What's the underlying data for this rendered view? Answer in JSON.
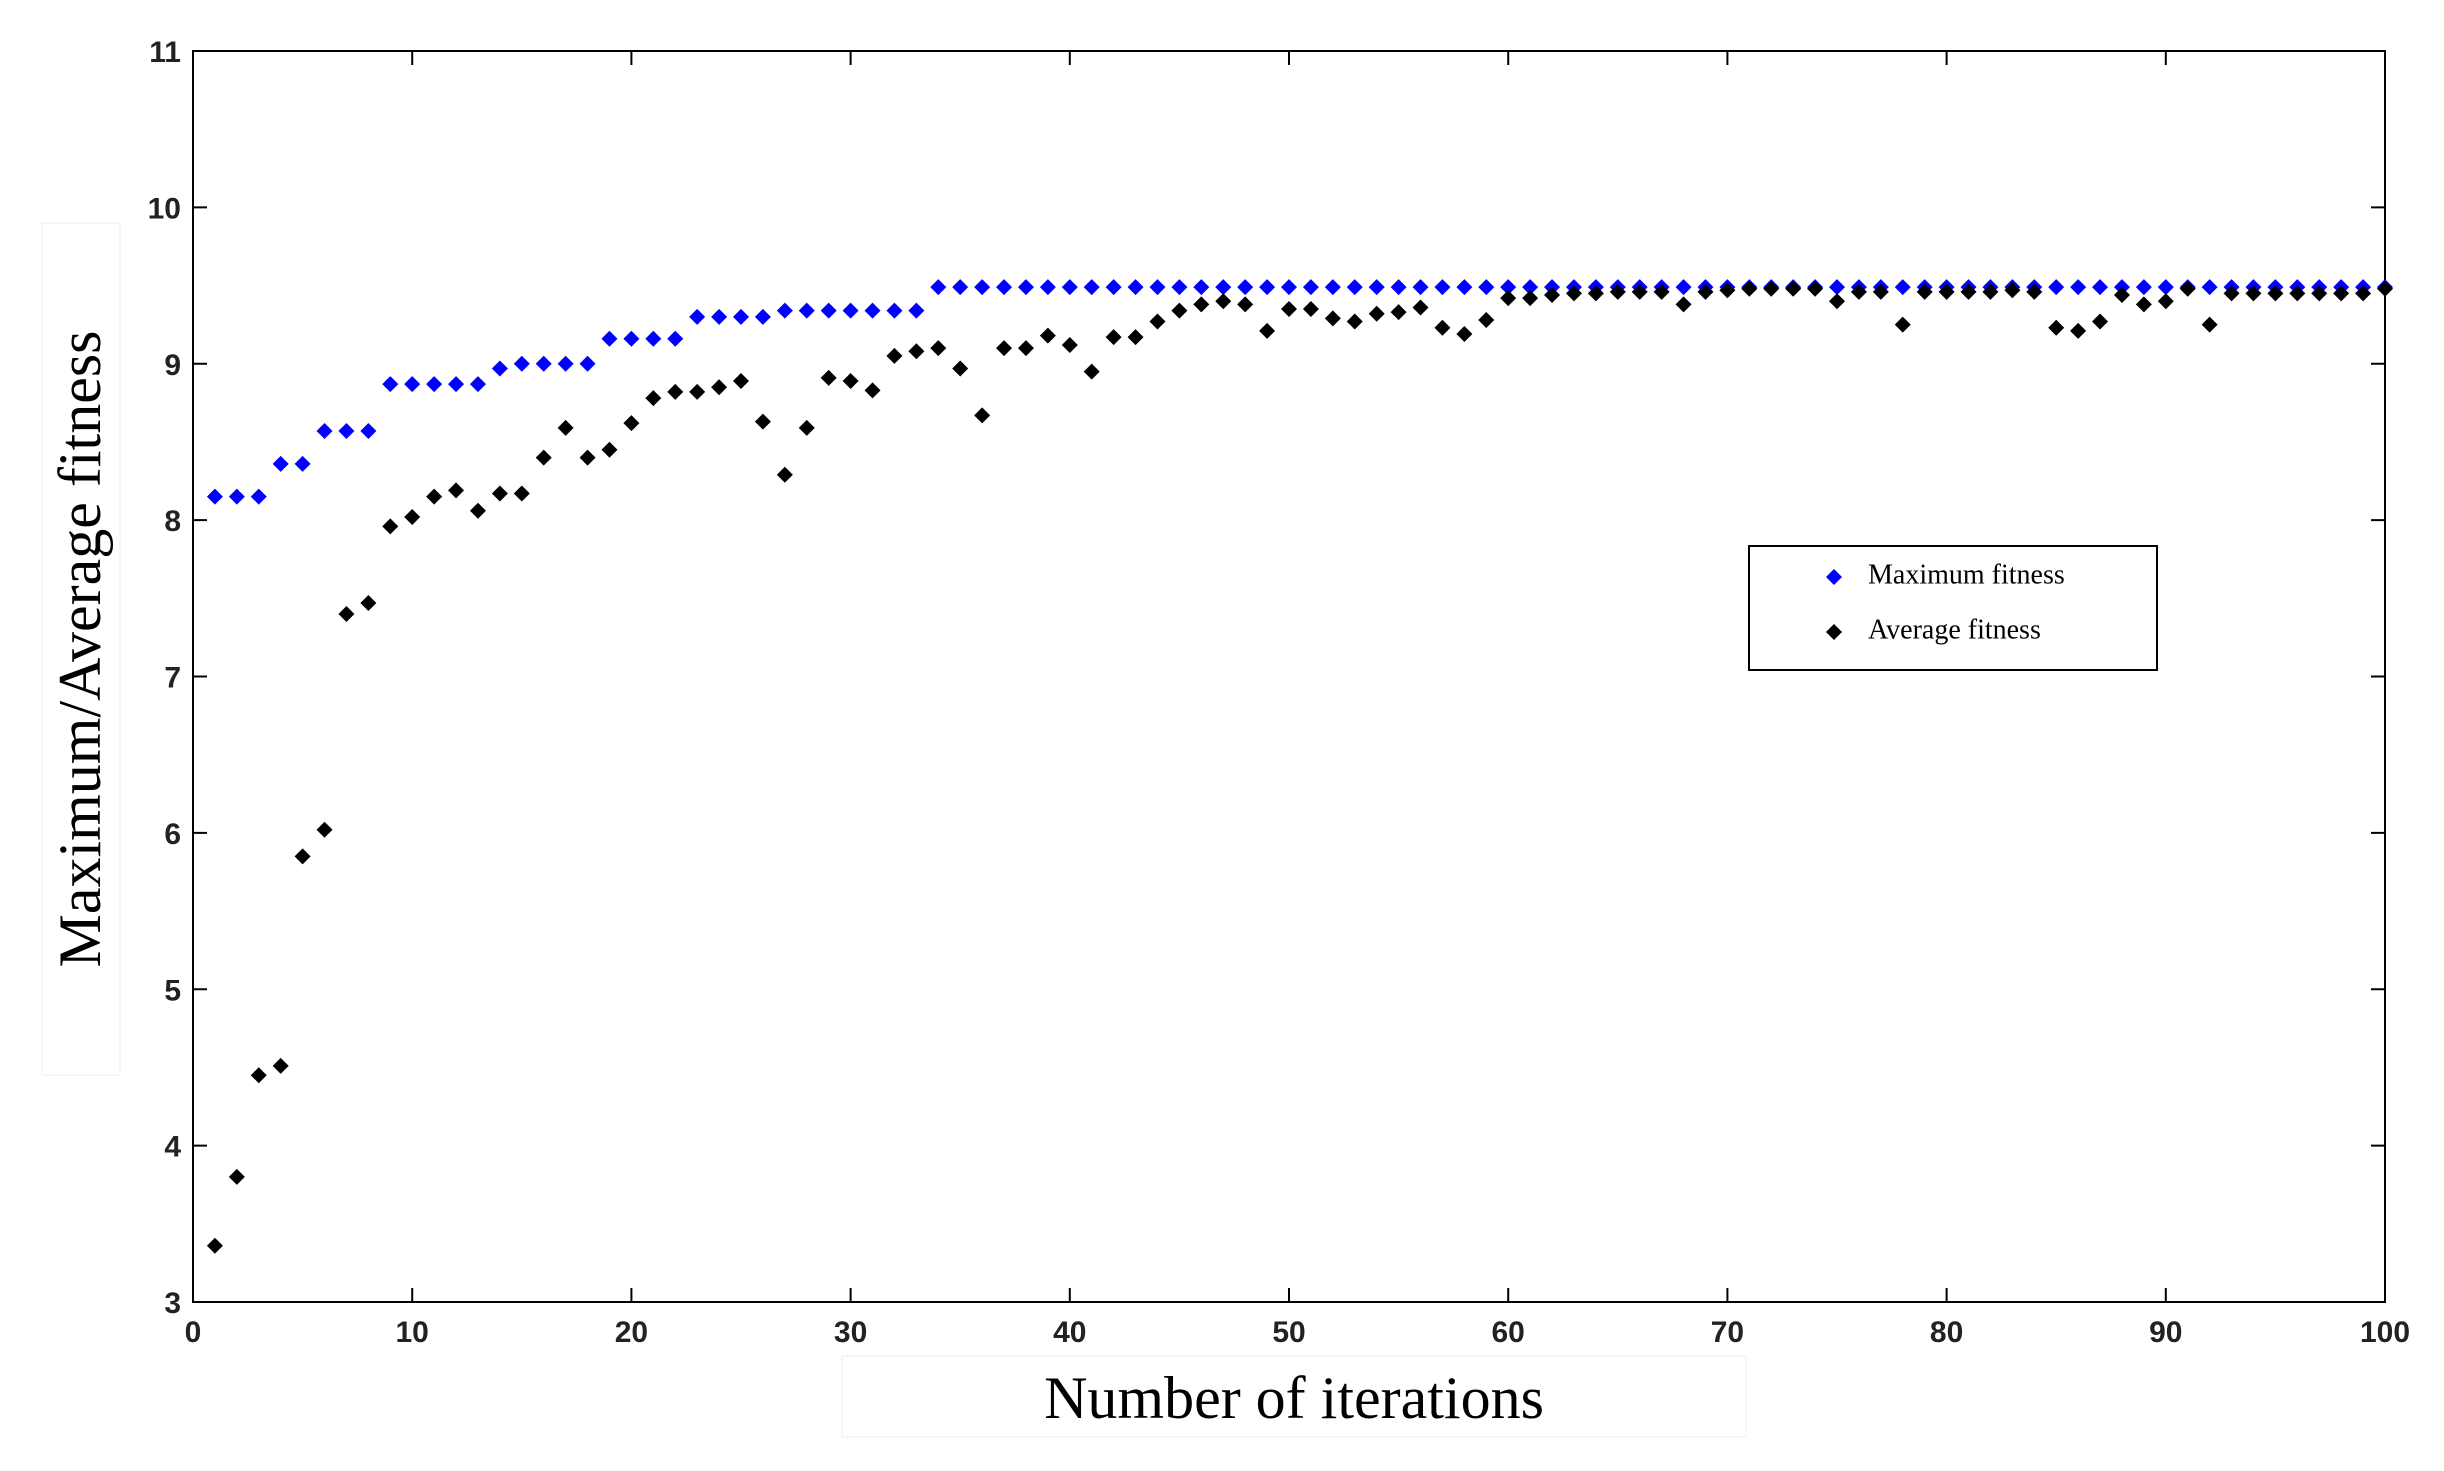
{
  "chart_data": {
    "type": "scatter",
    "x_label": "Number of iterations",
    "y_label": "Maximum/Average fitness",
    "x": [
      1,
      2,
      3,
      4,
      5,
      6,
      7,
      8,
      9,
      10,
      11,
      12,
      13,
      14,
      15,
      16,
      17,
      18,
      19,
      20,
      21,
      22,
      23,
      24,
      25,
      26,
      27,
      28,
      29,
      30,
      31,
      32,
      33,
      34,
      35,
      36,
      37,
      38,
      39,
      40,
      41,
      42,
      43,
      44,
      45,
      46,
      47,
      48,
      49,
      50,
      51,
      52,
      53,
      54,
      55,
      56,
      57,
      58,
      59,
      60,
      61,
      62,
      63,
      64,
      65,
      66,
      67,
      68,
      69,
      70,
      71,
      72,
      73,
      74,
      75,
      76,
      77,
      78,
      79,
      80,
      81,
      82,
      83,
      84,
      85,
      86,
      87,
      88,
      89,
      90,
      91,
      92,
      93,
      94,
      95,
      96,
      97,
      98,
      99,
      100
    ],
    "series": [
      {
        "name": "Maximum fitness",
        "color": "#0000ff",
        "values": [
          8.15,
          8.15,
          8.15,
          8.36,
          8.36,
          8.57,
          8.57,
          8.57,
          8.87,
          8.87,
          8.87,
          8.87,
          8.87,
          8.97,
          9.0,
          9.0,
          9.0,
          9.0,
          9.16,
          9.16,
          9.16,
          9.16,
          9.3,
          9.3,
          9.3,
          9.3,
          9.34,
          9.34,
          9.34,
          9.34,
          9.34,
          9.34,
          9.34,
          9.49,
          9.49,
          9.49,
          9.49,
          9.49,
          9.49,
          9.49,
          9.49,
          9.49,
          9.49,
          9.49,
          9.49,
          9.49,
          9.49,
          9.49,
          9.49,
          9.49,
          9.49,
          9.49,
          9.49,
          9.49,
          9.49,
          9.49,
          9.49,
          9.49,
          9.49,
          9.49,
          9.49,
          9.49,
          9.49,
          9.49,
          9.49,
          9.49,
          9.49,
          9.49,
          9.49,
          9.49,
          9.49,
          9.49,
          9.49,
          9.49,
          9.49,
          9.49,
          9.49,
          9.49,
          9.49,
          9.49,
          9.49,
          9.49,
          9.49,
          9.49,
          9.49,
          9.49,
          9.49,
          9.49,
          9.49,
          9.49,
          9.49,
          9.49,
          9.49,
          9.49,
          9.49,
          9.49,
          9.49,
          9.49,
          9.49,
          9.49
        ]
      },
      {
        "name": "Average fitness",
        "color": "#000000",
        "values": [
          3.36,
          3.8,
          4.45,
          4.51,
          5.85,
          6.02,
          7.4,
          7.47,
          7.96,
          8.02,
          8.15,
          8.19,
          8.06,
          8.17,
          8.17,
          8.4,
          8.59,
          8.4,
          8.45,
          8.62,
          8.78,
          8.82,
          8.82,
          8.85,
          8.89,
          8.63,
          8.29,
          8.59,
          8.91,
          8.89,
          8.83,
          9.05,
          9.08,
          9.1,
          8.97,
          8.67,
          9.1,
          9.1,
          9.18,
          9.12,
          8.95,
          9.17,
          9.17,
          9.27,
          9.34,
          9.38,
          9.4,
          9.38,
          9.21,
          9.35,
          9.35,
          9.29,
          9.27,
          9.32,
          9.33,
          9.36,
          9.23,
          9.19,
          9.28,
          9.42,
          9.42,
          9.44,
          9.45,
          9.45,
          9.46,
          9.46,
          9.46,
          9.38,
          9.46,
          9.47,
          9.48,
          9.48,
          9.48,
          9.48,
          9.4,
          9.46,
          9.46,
          9.25,
          9.46,
          9.46,
          9.46,
          9.46,
          9.47,
          9.46,
          9.23,
          9.21,
          9.27,
          9.44,
          9.38,
          9.4,
          9.48,
          9.25,
          9.45,
          9.45,
          9.45,
          9.45,
          9.45,
          9.45,
          9.45,
          9.48
        ]
      }
    ],
    "xlim": [
      0,
      100
    ],
    "xticks": [
      0,
      10,
      20,
      30,
      40,
      50,
      60,
      70,
      80,
      90,
      100
    ],
    "ylim": [
      3,
      11
    ],
    "yticks": [
      3,
      4,
      5,
      6,
      7,
      8,
      9,
      10,
      11
    ],
    "grid": false
  }
}
